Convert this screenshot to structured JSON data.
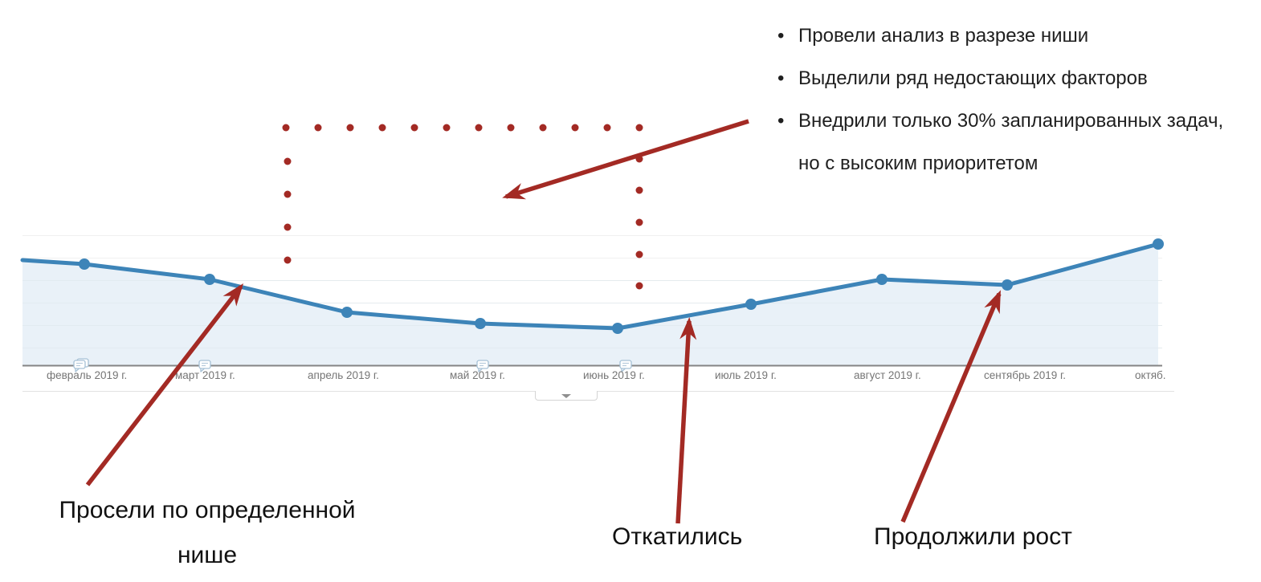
{
  "chart_data": {
    "type": "line",
    "title": "",
    "xlabel": "",
    "ylabel": "",
    "categories": [
      "февраль 2019 г.",
      "март 2019 г.",
      "апрель 2019 г.",
      "май 2019 г.",
      "июнь 2019 г.",
      "июль 2019 г.",
      "август 2019 г.",
      "сентябрь 2019 г.",
      "октябрь 2019 г."
    ],
    "values": [
      126,
      107,
      66,
      52,
      46,
      76,
      107,
      100,
      151
    ],
    "lead_in_value": 131,
    "value_units": "relative sessions (y-axis not visible in screenshot)",
    "x_tick_labels": [
      "февраль 2019 г.",
      "март 2019 г.",
      "апрель 2019 г.",
      "май 2019 г.",
      "июнь 2019 г.",
      "июль 2019 г.",
      "август 2019 г.",
      "сентябрь 2019 г.",
      "октяб."
    ],
    "grid": true,
    "legend": false,
    "line_color": "#3d84b8",
    "area_fill_color": "#e9f1f8",
    "axis_line_color": "#848484",
    "gridline_color": "#f0f0f0",
    "tick_label_color": "#757575",
    "annotation_bubble_months": [
      "февраль 2019 г.",
      "март 2019 г.",
      "май 2019 г.",
      "июнь 2019 г."
    ]
  },
  "overlay": {
    "accent_color": "#a32a24",
    "bullets": [
      "Провели анализ в разрезе ниши",
      "Выделили ряд недостающих факторов",
      "Внедрили только 30% запланированных задач, но с высоким приоритетом"
    ],
    "dip_label": "Просели по определенной нише",
    "rollback_label": "Откатились",
    "growth_label": "Продолжили рост"
  },
  "axis_drawer": {
    "collapsed": true,
    "chevron_icon": "chevron-down"
  }
}
